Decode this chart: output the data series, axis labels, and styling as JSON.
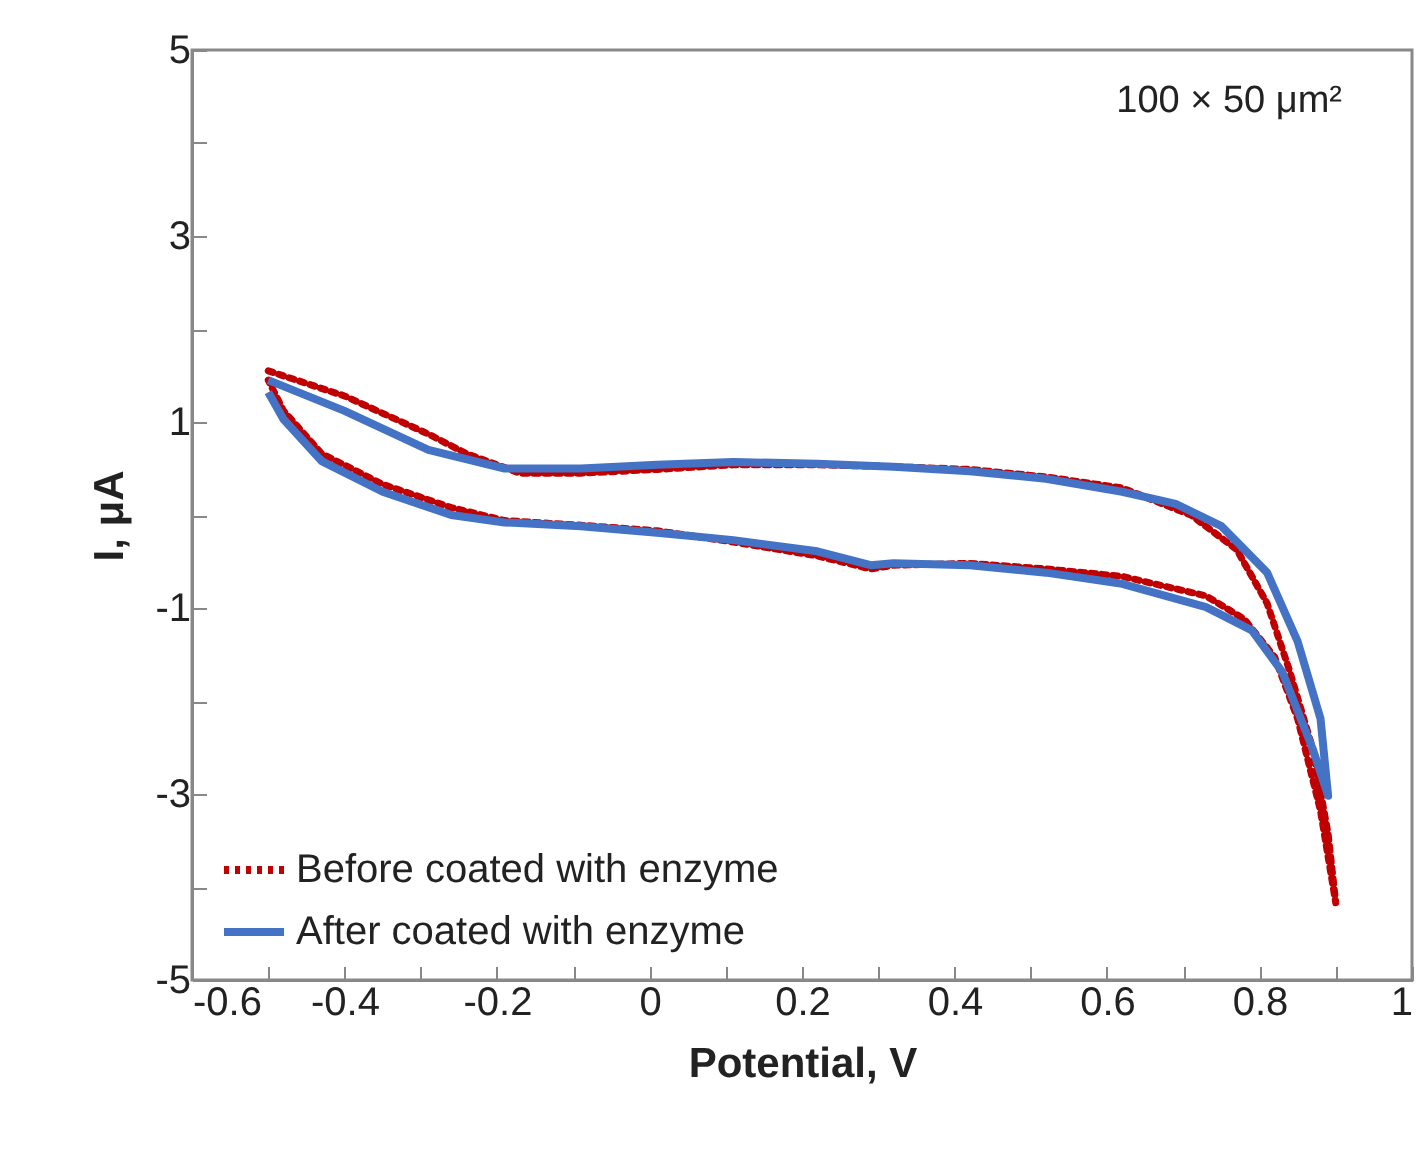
{
  "chart_data": {
    "type": "line",
    "xlabel": "Potential,  V",
    "ylabel": "I, μA",
    "annotations": [
      "100 × 50 μm²"
    ],
    "xlim": [
      -0.6,
      1
    ],
    "xticks": [
      -0.6,
      {
        "value": -0.5,
        "label": null
      },
      -0.4,
      {
        "value": -0.3,
        "label": null
      },
      -0.2,
      {
        "value": -0.1,
        "label": null
      },
      0,
      {
        "value": 0.1,
        "label": null
      },
      0.2,
      {
        "value": 0.3,
        "label": null
      },
      0.4,
      {
        "value": 0.5,
        "label": null
      },
      0.6,
      {
        "value": 0.7,
        "label": null
      },
      0.8,
      {
        "value": 0.9,
        "label": null
      },
      1
    ],
    "ylim": [
      -5,
      5
    ],
    "yticks": [
      -5,
      {
        "value": -4,
        "label": null
      },
      -3,
      {
        "value": -2,
        "label": null
      },
      -1,
      {
        "value": 0,
        "label": null
      },
      1,
      {
        "value": 2,
        "label": null
      },
      3,
      {
        "value": 4,
        "label": null
      },
      5
    ],
    "grid": false,
    "legend": "bottom left",
    "marker": "none",
    "series": [
      {
        "name": "Before coated with enzyme",
        "color": "#c00000",
        "line_style": "dotted",
        "x": [
          -0.5,
          -0.4,
          -0.29,
          -0.24,
          -0.17,
          -0.09,
          0.01,
          0.11,
          0.22,
          0.32,
          0.42,
          0.52,
          0.62,
          0.71,
          0.77,
          0.81,
          0.84,
          0.87,
          0.89,
          0.9,
          0.88,
          0.85,
          0.82,
          0.78,
          0.73,
          0.62,
          0.52,
          0.42,
          0.32,
          0.29,
          0.22,
          0.11,
          0.01,
          -0.09,
          -0.19,
          -0.26,
          -0.35,
          -0.43,
          -0.48,
          -0.5
        ],
        "values": [
          1.55,
          1.28,
          0.87,
          0.66,
          0.45,
          0.45,
          0.49,
          0.54,
          0.54,
          0.52,
          0.49,
          0.41,
          0.29,
          0.0,
          -0.37,
          -0.95,
          -1.69,
          -2.52,
          -3.43,
          -4.17,
          -3.18,
          -2.19,
          -1.53,
          -1.12,
          -0.87,
          -0.66,
          -0.58,
          -0.52,
          -0.54,
          -0.58,
          -0.44,
          -0.29,
          -0.17,
          -0.11,
          -0.06,
          0.08,
          0.33,
          0.66,
          1.12,
          1.45
        ]
      },
      {
        "name": "After coated with enzyme",
        "color": "#4472c4",
        "line_style": "solid",
        "x": [
          -0.5,
          -0.4,
          -0.29,
          -0.19,
          -0.09,
          0.01,
          0.11,
          0.22,
          0.32,
          0.42,
          0.52,
          0.62,
          0.69,
          0.75,
          0.81,
          0.85,
          0.88,
          0.89,
          0.87,
          0.83,
          0.79,
          0.73,
          0.62,
          0.52,
          0.42,
          0.32,
          0.29,
          0.22,
          0.11,
          0.01,
          -0.09,
          -0.19,
          -0.26,
          -0.35,
          -0.43,
          -0.48,
          -0.5
        ],
        "values": [
          1.45,
          1.12,
          0.7,
          0.5,
          0.5,
          0.54,
          0.57,
          0.55,
          0.52,
          0.47,
          0.39,
          0.25,
          0.12,
          -0.12,
          -0.62,
          -1.36,
          -2.19,
          -3.02,
          -2.52,
          -1.69,
          -1.24,
          -0.99,
          -0.74,
          -0.62,
          -0.54,
          -0.52,
          -0.54,
          -0.39,
          -0.27,
          -0.19,
          -0.12,
          -0.08,
          0.0,
          0.25,
          0.58,
          1.03,
          1.32
        ]
      }
    ]
  }
}
